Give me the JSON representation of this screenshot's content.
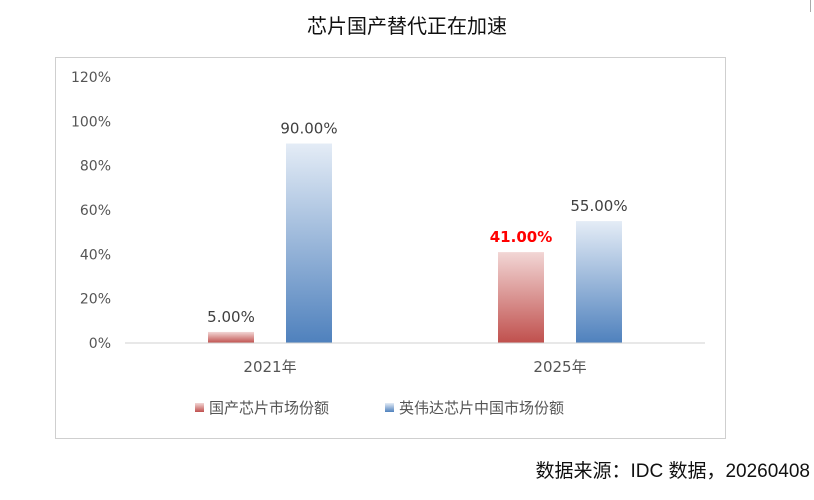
{
  "chart_data": {
    "type": "bar",
    "title": "芯片国产替代正在加速",
    "categories": [
      "2021年",
      "2025年"
    ],
    "series": [
      {
        "name": "国产芯片市场份额",
        "values": [
          5.0,
          41.0
        ],
        "labels": [
          "5.00%",
          "41.00%"
        ],
        "color": "#c0504d"
      },
      {
        "name": "英伟达芯片中国市场份额",
        "values": [
          90.0,
          55.0
        ],
        "labels": [
          "90.00%",
          "55.00%"
        ],
        "color": "#4f81bd"
      }
    ],
    "ylim": [
      0,
      120
    ],
    "yticks": [
      "0%",
      "20%",
      "40%",
      "60%",
      "80%",
      "100%",
      "120%"
    ],
    "ytick_values": [
      0,
      20,
      40,
      60,
      80,
      100,
      120
    ],
    "highlight_label_color": "#ff0000",
    "grid": false,
    "legend_position": "bottom"
  },
  "source_note": "数据来源：IDC 数据，20260408"
}
